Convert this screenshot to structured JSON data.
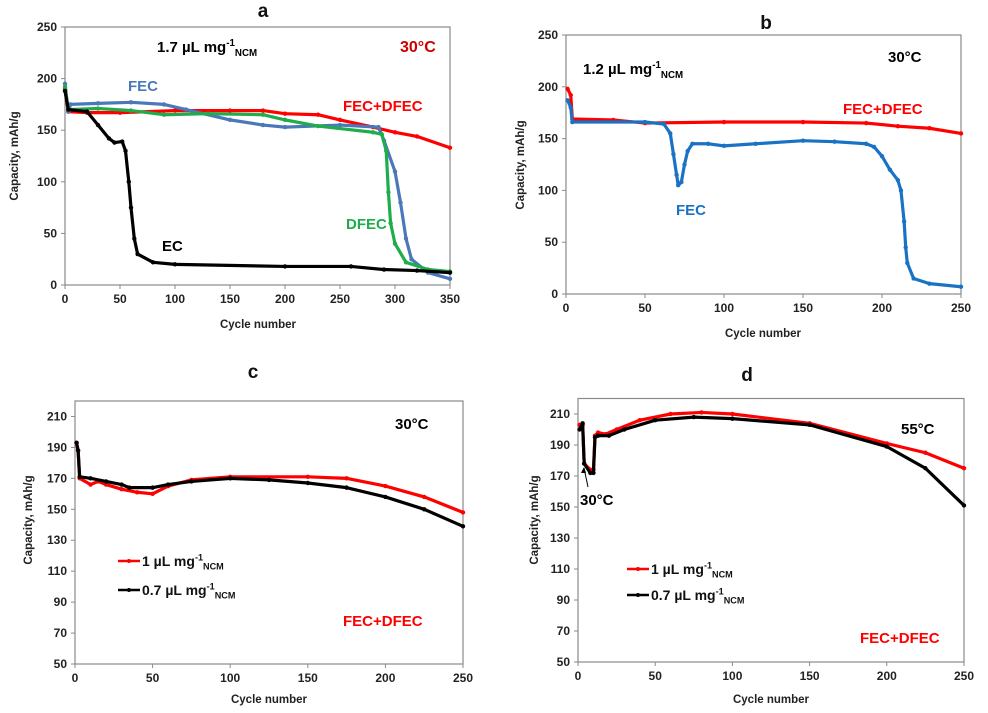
{
  "chart_data": [
    {
      "panel": "a",
      "type": "line",
      "xlabel": "Cycle number",
      "ylabel": "Capacity, mAh/g",
      "xlim": [
        0,
        350
      ],
      "ylim": [
        0,
        250
      ],
      "xticks": [
        0,
        50,
        100,
        150,
        200,
        250,
        300,
        350
      ],
      "yticks": [
        0,
        50,
        100,
        150,
        200,
        250
      ],
      "grid": false,
      "series": [
        {
          "name": "FEC+DFEC",
          "color": "#ff0000",
          "points": [
            [
              0,
              190
            ],
            [
              3,
              168
            ],
            [
              20,
              167
            ],
            [
              50,
              167
            ],
            [
              100,
              169
            ],
            [
              150,
              169
            ],
            [
              180,
              169
            ],
            [
              200,
              166
            ],
            [
              230,
              165
            ],
            [
              250,
              160
            ],
            [
              280,
              153
            ],
            [
              300,
              148
            ],
            [
              320,
              144
            ],
            [
              350,
              133
            ]
          ]
        },
        {
          "name": "FEC",
          "color": "#4a78b8",
          "points": [
            [
              0,
              195
            ],
            [
              3,
              168
            ],
            [
              5,
              175
            ],
            [
              30,
              176
            ],
            [
              60,
              177
            ],
            [
              90,
              175
            ],
            [
              110,
              170
            ],
            [
              150,
              160
            ],
            [
              180,
              155
            ],
            [
              200,
              153
            ],
            [
              250,
              155
            ],
            [
              285,
              153
            ],
            [
              290,
              140
            ],
            [
              300,
              110
            ],
            [
              305,
              80
            ],
            [
              310,
              45
            ],
            [
              315,
              25
            ],
            [
              330,
              12
            ],
            [
              350,
              6
            ]
          ]
        },
        {
          "name": "DFEC",
          "color": "#1fad4b",
          "points": [
            [
              0,
              192
            ],
            [
              3,
              170
            ],
            [
              30,
              171
            ],
            [
              60,
              169
            ],
            [
              90,
              165
            ],
            [
              130,
              166
            ],
            [
              180,
              165
            ],
            [
              200,
              160
            ],
            [
              230,
              154
            ],
            [
              280,
              148
            ],
            [
              288,
              146
            ],
            [
              292,
              130
            ],
            [
              294,
              90
            ],
            [
              296,
              60
            ],
            [
              300,
              40
            ],
            [
              310,
              22
            ],
            [
              330,
              15
            ],
            [
              350,
              13
            ]
          ]
        },
        {
          "name": "EC",
          "color": "#000000",
          "points": [
            [
              0,
              188
            ],
            [
              3,
              170
            ],
            [
              20,
              168
            ],
            [
              30,
              155
            ],
            [
              40,
              142
            ],
            [
              45,
              138
            ],
            [
              52,
              139
            ],
            [
              55,
              130
            ],
            [
              58,
              100
            ],
            [
              60,
              75
            ],
            [
              63,
              45
            ],
            [
              66,
              30
            ],
            [
              80,
              22
            ],
            [
              100,
              20
            ],
            [
              200,
              18
            ],
            [
              260,
              18
            ],
            [
              290,
              15
            ],
            [
              320,
              14
            ],
            [
              350,
              12
            ]
          ]
        }
      ],
      "annotations": [
        {
          "main": "1.7 µL mg",
          "sup": "-1",
          "sub": "NCM",
          "color": "#000000"
        },
        {
          "main": "30°C",
          "color": "#cc0000"
        },
        {
          "main": "FEC",
          "color": "#4a78b8"
        },
        {
          "main": "FEC+DFEC",
          "color": "#ff0000"
        },
        {
          "main": "DFEC",
          "color": "#1fad4b"
        },
        {
          "main": "EC",
          "color": "#000000"
        }
      ]
    },
    {
      "panel": "b",
      "type": "line",
      "xlabel": "Cycle number",
      "ylabel": "Capacity, mAh/g",
      "xlim": [
        0,
        250
      ],
      "ylim": [
        0,
        250
      ],
      "xticks": [
        0,
        50,
        100,
        150,
        200,
        250
      ],
      "yticks": [
        0,
        50,
        100,
        150,
        200,
        250
      ],
      "grid": false,
      "series": [
        {
          "name": "FEC+DFEC",
          "color": "#ff0000",
          "points": [
            [
              1,
              198
            ],
            [
              3,
              192
            ],
            [
              4,
              169
            ],
            [
              30,
              168
            ],
            [
              50,
              165
            ],
            [
              100,
              166
            ],
            [
              150,
              166
            ],
            [
              190,
              165
            ],
            [
              210,
              162
            ],
            [
              230,
              160
            ],
            [
              250,
              155
            ]
          ]
        },
        {
          "name": "FEC",
          "color": "#1a72c4",
          "points": [
            [
              1,
              187
            ],
            [
              3,
              180
            ],
            [
              4,
              166
            ],
            [
              50,
              166
            ],
            [
              62,
              164
            ],
            [
              66,
              155
            ],
            [
              68,
              135
            ],
            [
              70,
              115
            ],
            [
              71,
              105
            ],
            [
              73,
              108
            ],
            [
              75,
              125
            ],
            [
              77,
              138
            ],
            [
              80,
              145
            ],
            [
              90,
              145
            ],
            [
              100,
              143
            ],
            [
              120,
              145
            ],
            [
              150,
              148
            ],
            [
              170,
              147
            ],
            [
              190,
              145
            ],
            [
              195,
              142
            ],
            [
              200,
              133
            ],
            [
              205,
              120
            ],
            [
              210,
              110
            ],
            [
              212,
              100
            ],
            [
              214,
              70
            ],
            [
              215,
              45
            ],
            [
              216,
              30
            ],
            [
              220,
              15
            ],
            [
              230,
              10
            ],
            [
              250,
              7
            ]
          ]
        }
      ],
      "annotations": [
        {
          "main": "1.2 µL mg",
          "sup": "-1",
          "sub": "NCM",
          "color": "#000000"
        },
        {
          "main": "30°C",
          "color": "#000000"
        },
        {
          "main": "FEC+DFEC",
          "color": "#ff0000"
        },
        {
          "main": "FEC",
          "color": "#1a72c4"
        }
      ]
    },
    {
      "panel": "c",
      "type": "line",
      "xlabel": "Cycle number",
      "ylabel": "Capacity, mAh/g",
      "xlim": [
        0,
        250
      ],
      "ylim": [
        50,
        220
      ],
      "xticks": [
        0,
        50,
        100,
        150,
        200,
        250
      ],
      "yticks": [
        50,
        70,
        90,
        110,
        130,
        150,
        170,
        190,
        210
      ],
      "grid": false,
      "legend": "center-left",
      "series": [
        {
          "name": {
            "main": "1  µL mg",
            "sup": "-1",
            "sub": "NCM"
          },
          "color": "#ff0000",
          "points": [
            [
              1,
              193
            ],
            [
              2,
              188
            ],
            [
              3,
              170
            ],
            [
              10,
              166
            ],
            [
              15,
              168
            ],
            [
              20,
              166
            ],
            [
              30,
              163
            ],
            [
              40,
              161
            ],
            [
              50,
              160
            ],
            [
              60,
              165
            ],
            [
              75,
              169
            ],
            [
              100,
              171
            ],
            [
              150,
              171
            ],
            [
              175,
              170
            ],
            [
              200,
              165
            ],
            [
              225,
              158
            ],
            [
              250,
              148
            ]
          ]
        },
        {
          "name": {
            "main": "0.7  µL mg",
            "sup": "-1",
            "sub": "NCM"
          },
          "color": "#000000",
          "points": [
            [
              1,
              193
            ],
            [
              2,
              188
            ],
            [
              3,
              171
            ],
            [
              10,
              170
            ],
            [
              20,
              168
            ],
            [
              30,
              166
            ],
            [
              35,
              164
            ],
            [
              50,
              164
            ],
            [
              60,
              166
            ],
            [
              75,
              168
            ],
            [
              100,
              170
            ],
            [
              125,
              169
            ],
            [
              150,
              167
            ],
            [
              175,
              164
            ],
            [
              200,
              158
            ],
            [
              225,
              150
            ],
            [
              250,
              139
            ]
          ]
        }
      ],
      "annotations": [
        {
          "main": "30°C",
          "color": "#000000"
        },
        {
          "main": "FEC+DFEC",
          "color": "#ff0000"
        }
      ]
    },
    {
      "panel": "d",
      "type": "line",
      "xlabel": "Cycle number",
      "ylabel": "Capacity, mAh/g",
      "xlim": [
        0,
        250
      ],
      "ylim": [
        50,
        220
      ],
      "xticks": [
        0,
        50,
        100,
        150,
        200,
        250
      ],
      "yticks": [
        50,
        70,
        90,
        110,
        130,
        150,
        170,
        190,
        210
      ],
      "grid": false,
      "legend": "center-left",
      "series": [
        {
          "name": {
            "main": "1  µL mg",
            "sup": "-1",
            "sub": "NCM"
          },
          "color": "#ff0000",
          "points": [
            [
              1,
              203
            ],
            [
              3,
              203
            ],
            [
              4,
              178
            ],
            [
              8,
              174
            ],
            [
              10,
              174
            ],
            [
              11,
              196
            ],
            [
              13,
              198
            ],
            [
              18,
              197
            ],
            [
              25,
              200
            ],
            [
              40,
              206
            ],
            [
              60,
              210
            ],
            [
              80,
              211
            ],
            [
              100,
              210
            ],
            [
              150,
              204
            ],
            [
              200,
              191
            ],
            [
              225,
              185
            ],
            [
              250,
              175
            ]
          ]
        },
        {
          "name": {
            "main": "0.7  µL mg",
            "sup": "-1",
            "sub": "NCM"
          },
          "color": "#000000",
          "points": [
            [
              1,
              200
            ],
            [
              3,
              204
            ],
            [
              4,
              178
            ],
            [
              8,
              172
            ],
            [
              10,
              172
            ],
            [
              11,
              195
            ],
            [
              13,
              196
            ],
            [
              20,
              196
            ],
            [
              30,
              200
            ],
            [
              50,
              206
            ],
            [
              75,
              208
            ],
            [
              100,
              207
            ],
            [
              150,
              203
            ],
            [
              200,
              189
            ],
            [
              225,
              175
            ],
            [
              250,
              151
            ]
          ]
        }
      ],
      "annotations": [
        {
          "main": "55°C",
          "color": "#000000"
        },
        {
          "main": "30°C",
          "color": "#000000",
          "arrow": true
        },
        {
          "main": "FEC+DFEC",
          "color": "#ff0000"
        }
      ]
    }
  ]
}
